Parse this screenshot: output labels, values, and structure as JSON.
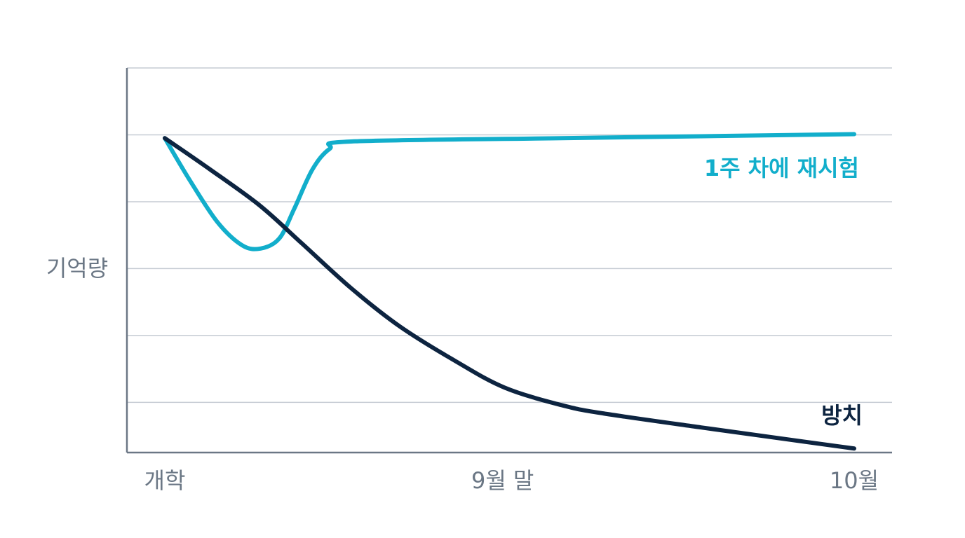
{
  "chart_data": {
    "type": "line",
    "y_label": "기억량",
    "xlim": [
      0,
      100
    ],
    "xticks": [
      {
        "value": 0,
        "label": "개학"
      },
      {
        "value": 49,
        "label": "9월 말"
      },
      {
        "value": 100,
        "label": "10월"
      }
    ],
    "ylim": [
      -15,
      100
    ],
    "yticks": [
      0,
      20,
      40,
      60,
      80,
      100
    ],
    "grid": true,
    "series": [
      {
        "name": "1주 차에 재시험",
        "color": "#12aecb",
        "x": [
          0,
          3.6,
          7.6,
          11.2,
          13.9,
          16.6,
          18.8,
          21.4,
          23.9,
          27,
          57.5,
          100
        ],
        "values": [
          79,
          66.5,
          54,
          47,
          46,
          49,
          58,
          69.6,
          75.8,
          78,
          79,
          80.2
        ]
      },
      {
        "name": "방치",
        "color": "#0d2440",
        "x": [
          0,
          6.6,
          13.7,
          19.8,
          27,
          34.1,
          42.2,
          49.3,
          57.5,
          63.6,
          77.8,
          100
        ],
        "values": [
          79,
          69.6,
          59,
          47.7,
          34.2,
          22.7,
          12.3,
          4.4,
          -0.8,
          -3.3,
          -7.5,
          -13.8
        ]
      }
    ]
  }
}
